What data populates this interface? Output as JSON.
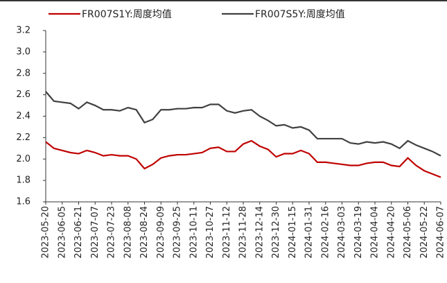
{
  "chart_data": {
    "type": "line",
    "categories": [
      "2023-05-20",
      null,
      "2023-06-05",
      null,
      "2023-06-21",
      null,
      "2023-07-07",
      null,
      "2023-07-23",
      null,
      "2023-08-08",
      null,
      "2023-08-24",
      null,
      "2023-09-09",
      null,
      "2023-09-25",
      null,
      "2023-10-11",
      null,
      "2023-10-27",
      null,
      "2023-11-12",
      null,
      "2023-11-28",
      null,
      "2023-12-14",
      null,
      "2023-12-30",
      null,
      "2024-01-15",
      null,
      "2024-01-31",
      null,
      "2024-02-16",
      null,
      "2024-03-03",
      null,
      "2024-03-19",
      null,
      "2024-04-04",
      null,
      "2024-04-20",
      null,
      "2024-05-06",
      null,
      "2024-05-22",
      null,
      "2024-06-07"
    ],
    "series": [
      {
        "name": "FR007S1Y:周度均值",
        "color": "#c00000",
        "values": [
          2.16,
          2.1,
          2.08,
          2.06,
          2.05,
          2.08,
          2.06,
          2.03,
          2.04,
          2.03,
          2.03,
          2.0,
          1.91,
          1.95,
          2.01,
          2.03,
          2.04,
          2.04,
          2.05,
          2.06,
          2.1,
          2.11,
          2.07,
          2.07,
          2.14,
          2.17,
          2.12,
          2.09,
          2.02,
          2.05,
          2.05,
          2.08,
          2.05,
          1.97,
          1.97,
          1.96,
          1.95,
          1.94,
          1.94,
          1.96,
          1.97,
          1.97,
          1.94,
          1.93,
          2.01,
          1.94,
          1.89,
          1.86,
          1.83
        ]
      },
      {
        "name": "FR007S5Y:周度均值",
        "color": "#404040",
        "values": [
          2.63,
          2.54,
          2.53,
          2.52,
          2.47,
          2.53,
          2.5,
          2.46,
          2.46,
          2.45,
          2.48,
          2.46,
          2.34,
          2.37,
          2.46,
          2.46,
          2.47,
          2.47,
          2.48,
          2.48,
          2.51,
          2.51,
          2.45,
          2.43,
          2.45,
          2.46,
          2.4,
          2.36,
          2.31,
          2.32,
          2.29,
          2.3,
          2.27,
          2.19,
          2.19,
          2.19,
          2.19,
          2.15,
          2.14,
          2.16,
          2.15,
          2.16,
          2.14,
          2.1,
          2.17,
          2.13,
          2.1,
          2.07,
          2.03
        ]
      }
    ],
    "ylim": [
      1.6,
      3.2
    ],
    "yticks": [
      1.6,
      1.8,
      {
        "value": 2.0,
        "label": "2.0"
      },
      2.2,
      2.4,
      2.6,
      2.8,
      {
        "value": 3.0,
        "label": "3.0"
      },
      3.2
    ],
    "legend": "top"
  }
}
